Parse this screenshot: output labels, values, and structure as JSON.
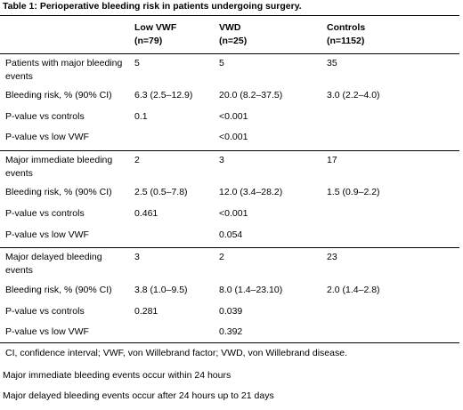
{
  "title": "Table 1: Perioperative bleeding risk in patients undergoing surgery.",
  "columns": [
    {
      "name": "Low VWF",
      "n": "(n=79)"
    },
    {
      "name": "VWD",
      "n": "(n=25)"
    },
    {
      "name": "Controls",
      "n": "(n=1152)"
    }
  ],
  "sections": [
    {
      "rows": [
        {
          "label": "Patients with major bleeding events",
          "values": [
            "5",
            "5",
            "35"
          ]
        },
        {
          "label": "Bleeding risk, % (90% CI)",
          "values": [
            "6.3 (2.5–12.9)",
            "20.0 (8.2–37.5)",
            "3.0 (2.2–4.0)"
          ]
        },
        {
          "label": "P-value vs controls",
          "values": [
            "0.1",
            "<0.001",
            ""
          ]
        },
        {
          "label": "P-value vs low VWF",
          "values": [
            "",
            "<0.001",
            ""
          ]
        }
      ]
    },
    {
      "rows": [
        {
          "label": "Major immediate bleeding events",
          "values": [
            "2",
            "3",
            "17"
          ]
        },
        {
          "label": "Bleeding risk, % (90% CI)",
          "values": [
            "2.5 (0.5–7.8)",
            "12.0 (3.4–28.2)",
            "1.5 (0.9–2.2)"
          ]
        },
        {
          "label": "P-value vs controls",
          "values": [
            "0.461",
            "<0.001",
            ""
          ]
        },
        {
          "label": "P-value vs low VWF",
          "values": [
            "",
            "0.054",
            ""
          ]
        }
      ]
    },
    {
      "rows": [
        {
          "label": "Major delayed bleeding events",
          "values": [
            "3",
            "2",
            "23"
          ]
        },
        {
          "label": "Bleeding risk, % (90% CI)",
          "values": [
            "3.8 (1.0–9.5)",
            "8.0 (1.4–23.10)",
            "2.0 (1.4–2.8)"
          ]
        },
        {
          "label": "P-value vs controls",
          "values": [
            "0.281",
            "0.039",
            ""
          ]
        },
        {
          "label": "P-value vs low VWF",
          "values": [
            "",
            "0.392",
            ""
          ]
        }
      ]
    }
  ],
  "footnotes": [
    "CI, confidence interval; VWF, von Willebrand factor; VWD, von Willebrand disease.",
    "Major immediate bleeding events occur within 24 hours",
    "Major delayed bleeding events occur after 24 hours up to 21 days"
  ]
}
